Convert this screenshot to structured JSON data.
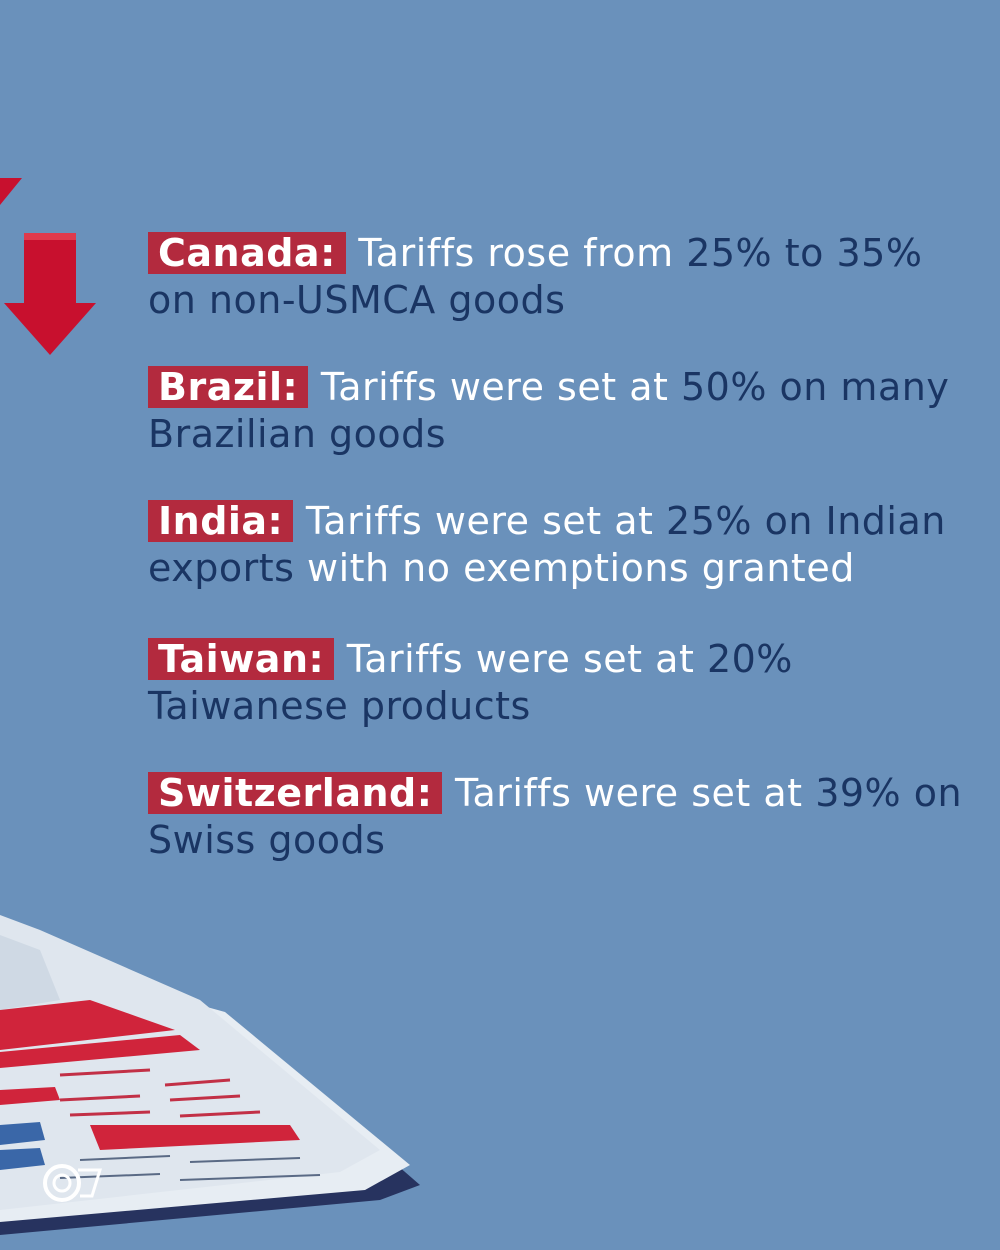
{
  "items": [
    {
      "country": "Canada:",
      "lead": "Tariffs rose from",
      "rest_dark": "25% to 35% on non-USMCA goods",
      "rest_light": ""
    },
    {
      "country": "Brazil:",
      "lead": "Tariffs were set at",
      "rest_dark": "50% on many Brazilian goods",
      "rest_light": ""
    },
    {
      "country": "India:",
      "lead": "Tariffs were set at",
      "rest_dark": "25% on Indian exports",
      "rest_light": "with no exemptions granted"
    },
    {
      "country": "Taiwan:",
      "lead": "Tariffs were set at",
      "rest_dark": "20% Taiwanese products",
      "rest_light": ""
    },
    {
      "country": "Switzerland:",
      "lead": "Tariffs were set at",
      "rest_dark": "39% on Swiss goods",
      "rest_light": ""
    }
  ],
  "colors": {
    "background": "#6a91bb",
    "highlight": "#b32a3e",
    "accent_text": "#1a3563",
    "arrow": "#c8102e"
  },
  "icons": [
    "down-arrow-icon",
    "newspaper-illustration",
    "brand-logo-icon"
  ]
}
